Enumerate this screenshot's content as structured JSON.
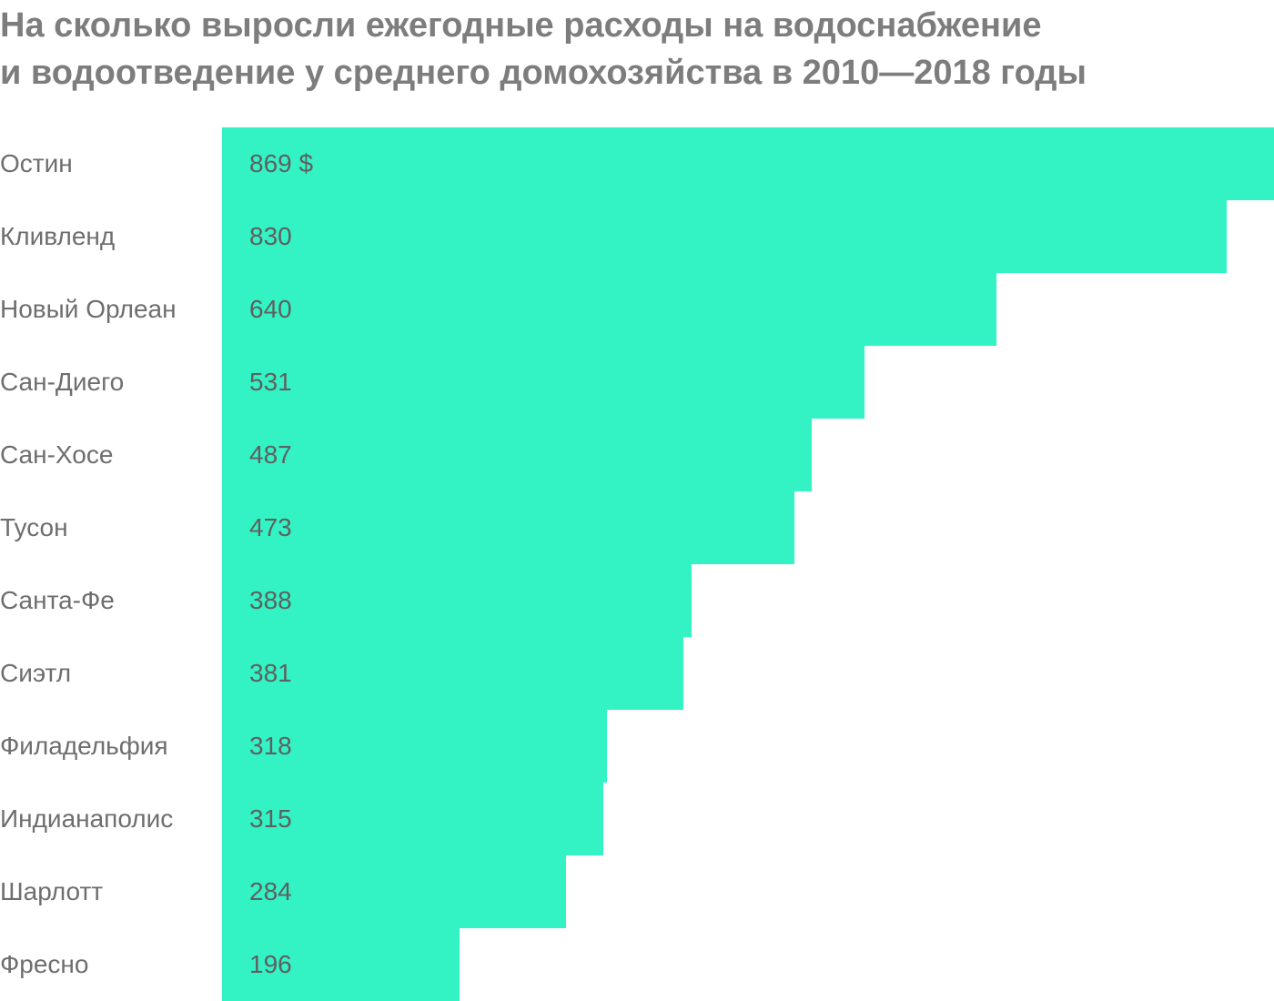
{
  "title_lines": [
    "На сколько выросли ежегодные расходы на водоснабжение",
    "и водоотведение у среднего домохозяйства в 2010—2018 годы"
  ],
  "colors": {
    "bar": "#33f3c5",
    "title": "#7d7d7d",
    "label": "#6e6e6e",
    "value": "#5f5f5f"
  },
  "chart_data": {
    "type": "bar",
    "orientation": "horizontal",
    "title": "На сколько выросли ежегодные расходы на водоснабжение и водоотведение у среднего домохозяйства в 2010—2018 годы",
    "categories": [
      "Остин",
      "Кливленд",
      "Новый Орлеан",
      "Сан-Диего",
      "Сан-Хосе",
      "Тусон",
      "Санта-Фе",
      "Сиэтл",
      "Филадельфия",
      "Индианаполис",
      "Шарлотт",
      "Фресно"
    ],
    "values": [
      869,
      830,
      640,
      531,
      487,
      473,
      388,
      381,
      318,
      315,
      284,
      196
    ],
    "value_labels": [
      "869 $",
      "830",
      "640",
      "531",
      "487",
      "473",
      "388",
      "381",
      "318",
      "315",
      "284",
      "196"
    ],
    "unit": "$",
    "xlim": [
      0,
      869
    ],
    "grid": false,
    "legend": "none"
  }
}
